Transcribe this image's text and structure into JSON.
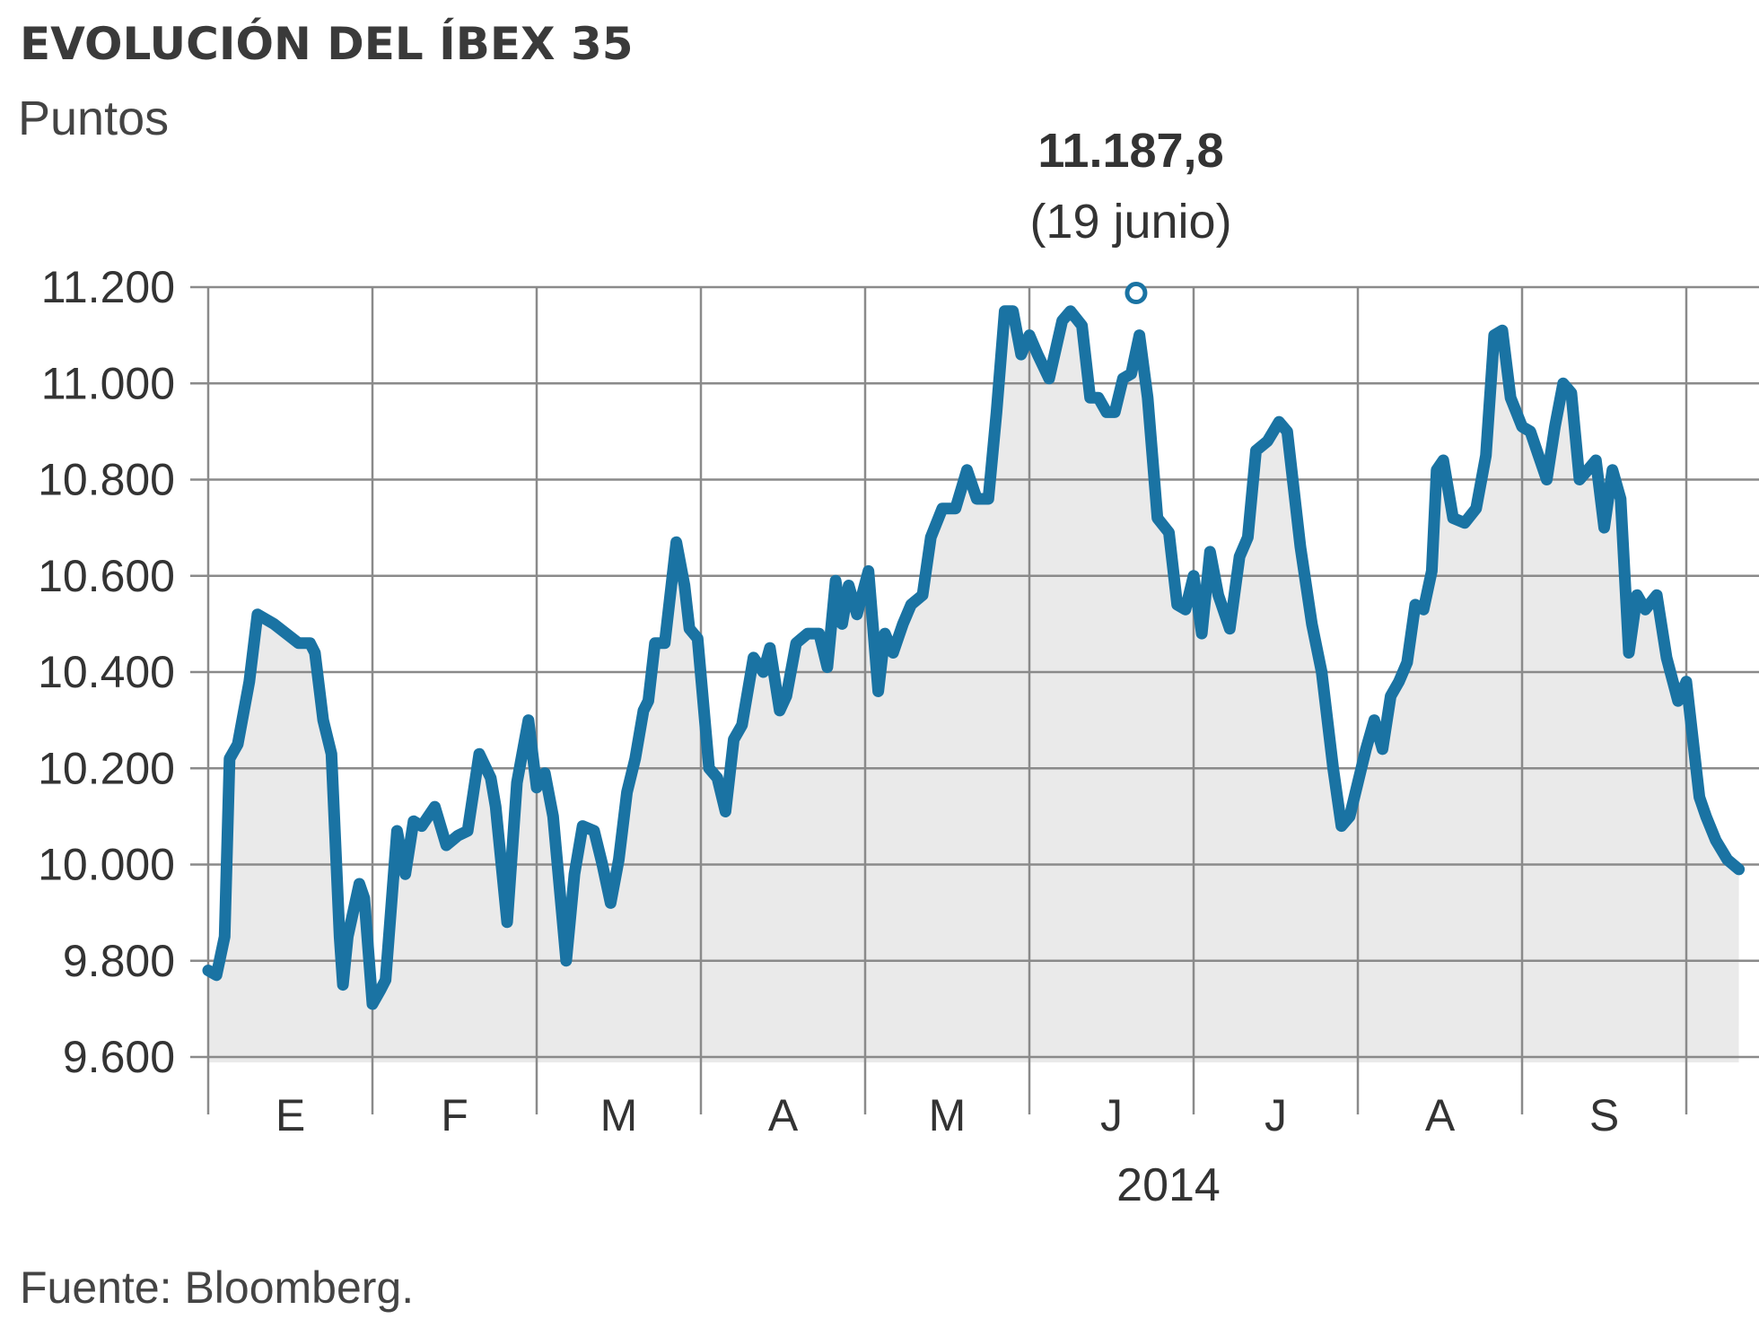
{
  "title": "EVOLUCIÓN DEL ÍBEX 35",
  "subtitle": "Puntos",
  "source": "Fuente: Bloomberg.",
  "colors": {
    "line": "#1a73a3",
    "area": "#eaeaea",
    "grid": "#8a8a8a"
  },
  "chart_data": {
    "type": "line",
    "title": "EVOLUCIÓN DEL ÍBEX 35",
    "ylabel": "Puntos",
    "xlabel": "2014",
    "ylim": [
      9600,
      11200
    ],
    "yticks": [
      {
        "value": 9600,
        "label": "9.600"
      },
      {
        "value": 9800,
        "label": "9.800"
      },
      {
        "value": 10000,
        "label": "10.000"
      },
      {
        "value": 10200,
        "label": "10.200"
      },
      {
        "value": 10400,
        "label": "10.400"
      },
      {
        "value": 10600,
        "label": "10.600"
      },
      {
        "value": 10800,
        "label": "10.800"
      },
      {
        "value": 11000,
        "label": "11.000"
      },
      {
        "value": 11200,
        "label": "11.200"
      }
    ],
    "months": [
      "E",
      "F",
      "M",
      "A",
      "M",
      "J",
      "J",
      "A",
      "S"
    ],
    "xrange": [
      0,
      9.35
    ],
    "grid": true,
    "annotation": {
      "value": "11.187,8",
      "date": "(19 junio)",
      "x": 5.65,
      "y": 11187.8
    },
    "series": [
      {
        "points": [
          [
            0.0,
            9780
          ],
          [
            0.05,
            9770
          ],
          [
            0.1,
            9850
          ],
          [
            0.13,
            10220
          ],
          [
            0.18,
            10250
          ],
          [
            0.25,
            10380
          ],
          [
            0.3,
            10520
          ],
          [
            0.4,
            10500
          ],
          [
            0.55,
            10460
          ],
          [
            0.62,
            10460
          ],
          [
            0.65,
            10440
          ],
          [
            0.7,
            10300
          ],
          [
            0.75,
            10230
          ],
          [
            0.8,
            9850
          ],
          [
            0.82,
            9750
          ],
          [
            0.85,
            9850
          ],
          [
            0.92,
            9960
          ],
          [
            0.95,
            9930
          ],
          [
            1.0,
            9710
          ],
          [
            1.05,
            9740
          ],
          [
            1.08,
            9760
          ],
          [
            1.15,
            10070
          ],
          [
            1.2,
            9980
          ],
          [
            1.25,
            10090
          ],
          [
            1.3,
            10080
          ],
          [
            1.38,
            10120
          ],
          [
            1.45,
            10040
          ],
          [
            1.52,
            10060
          ],
          [
            1.58,
            10070
          ],
          [
            1.65,
            10230
          ],
          [
            1.72,
            10180
          ],
          [
            1.75,
            10120
          ],
          [
            1.82,
            9880
          ],
          [
            1.88,
            10170
          ],
          [
            1.95,
            10300
          ],
          [
            2.0,
            10160
          ],
          [
            2.05,
            10190
          ],
          [
            2.1,
            10100
          ],
          [
            2.18,
            9800
          ],
          [
            2.23,
            9980
          ],
          [
            2.28,
            10080
          ],
          [
            2.35,
            10070
          ],
          [
            2.4,
            10000
          ],
          [
            2.45,
            9920
          ],
          [
            2.5,
            10010
          ],
          [
            2.55,
            10150
          ],
          [
            2.6,
            10220
          ],
          [
            2.65,
            10320
          ],
          [
            2.68,
            10340
          ],
          [
            2.72,
            10460
          ],
          [
            2.78,
            10460
          ],
          [
            2.85,
            10670
          ],
          [
            2.9,
            10580
          ],
          [
            2.93,
            10490
          ],
          [
            2.98,
            10470
          ],
          [
            3.05,
            10200
          ],
          [
            3.1,
            10180
          ],
          [
            3.15,
            10110
          ],
          [
            3.2,
            10260
          ],
          [
            3.25,
            10290
          ],
          [
            3.32,
            10430
          ],
          [
            3.38,
            10400
          ],
          [
            3.42,
            10450
          ],
          [
            3.48,
            10320
          ],
          [
            3.52,
            10350
          ],
          [
            3.58,
            10460
          ],
          [
            3.65,
            10480
          ],
          [
            3.72,
            10480
          ],
          [
            3.77,
            10410
          ],
          [
            3.82,
            10590
          ],
          [
            3.86,
            10500
          ],
          [
            3.9,
            10580
          ],
          [
            3.95,
            10520
          ],
          [
            4.02,
            10610
          ],
          [
            4.08,
            10360
          ],
          [
            4.12,
            10480
          ],
          [
            4.17,
            10440
          ],
          [
            4.23,
            10500
          ],
          [
            4.28,
            10540
          ],
          [
            4.35,
            10560
          ],
          [
            4.4,
            10680
          ],
          [
            4.47,
            10740
          ],
          [
            4.55,
            10740
          ],
          [
            4.62,
            10820
          ],
          [
            4.68,
            10760
          ],
          [
            4.75,
            10760
          ],
          [
            4.8,
            10940
          ],
          [
            4.85,
            11150
          ],
          [
            4.9,
            11150
          ],
          [
            4.95,
            11060
          ],
          [
            5.0,
            11100
          ],
          [
            5.05,
            11060
          ],
          [
            5.12,
            11010
          ],
          [
            5.2,
            11130
          ],
          [
            5.25,
            11150
          ],
          [
            5.32,
            11120
          ],
          [
            5.37,
            10970
          ],
          [
            5.42,
            10970
          ],
          [
            5.47,
            10940
          ],
          [
            5.52,
            10940
          ],
          [
            5.57,
            11010
          ],
          [
            5.62,
            11020
          ],
          [
            5.67,
            11100
          ],
          [
            5.72,
            10970
          ],
          [
            5.78,
            10720
          ],
          [
            5.85,
            10690
          ],
          [
            5.9,
            10540
          ],
          [
            5.95,
            10530
          ],
          [
            6.0,
            10600
          ],
          [
            6.05,
            10480
          ],
          [
            6.1,
            10650
          ],
          [
            6.15,
            10560
          ],
          [
            6.22,
            10490
          ],
          [
            6.28,
            10640
          ],
          [
            6.33,
            10680
          ],
          [
            6.38,
            10860
          ],
          [
            6.45,
            10880
          ],
          [
            6.52,
            10920
          ],
          [
            6.57,
            10900
          ],
          [
            6.65,
            10660
          ],
          [
            6.72,
            10500
          ],
          [
            6.78,
            10400
          ],
          [
            6.85,
            10200
          ],
          [
            6.9,
            10080
          ],
          [
            6.95,
            10100
          ],
          [
            7.0,
            10170
          ],
          [
            7.05,
            10240
          ],
          [
            7.1,
            10300
          ],
          [
            7.15,
            10240
          ],
          [
            7.2,
            10350
          ],
          [
            7.25,
            10380
          ],
          [
            7.3,
            10420
          ],
          [
            7.35,
            10540
          ],
          [
            7.4,
            10530
          ],
          [
            7.45,
            10610
          ],
          [
            7.48,
            10820
          ],
          [
            7.52,
            10840
          ],
          [
            7.58,
            10720
          ],
          [
            7.65,
            10710
          ],
          [
            7.72,
            10740
          ],
          [
            7.78,
            10850
          ],
          [
            7.83,
            11100
          ],
          [
            7.88,
            11110
          ],
          [
            7.93,
            10970
          ],
          [
            8.0,
            10910
          ],
          [
            8.05,
            10900
          ],
          [
            8.1,
            10850
          ],
          [
            8.15,
            10800
          ],
          [
            8.2,
            10910
          ],
          [
            8.25,
            11000
          ],
          [
            8.3,
            10980
          ],
          [
            8.35,
            10800
          ],
          [
            8.4,
            10820
          ],
          [
            8.45,
            10840
          ],
          [
            8.5,
            10700
          ],
          [
            8.55,
            10820
          ],
          [
            8.6,
            10760
          ],
          [
            8.65,
            10440
          ],
          [
            8.7,
            10560
          ],
          [
            8.75,
            10530
          ],
          [
            8.82,
            10560
          ],
          [
            8.88,
            10430
          ],
          [
            8.95,
            10340
          ],
          [
            9.0,
            10380
          ],
          [
            9.08,
            10140
          ],
          [
            9.12,
            10100
          ],
          [
            9.18,
            10050
          ],
          [
            9.25,
            10010
          ],
          [
            9.32,
            9990
          ]
        ]
      }
    ]
  }
}
